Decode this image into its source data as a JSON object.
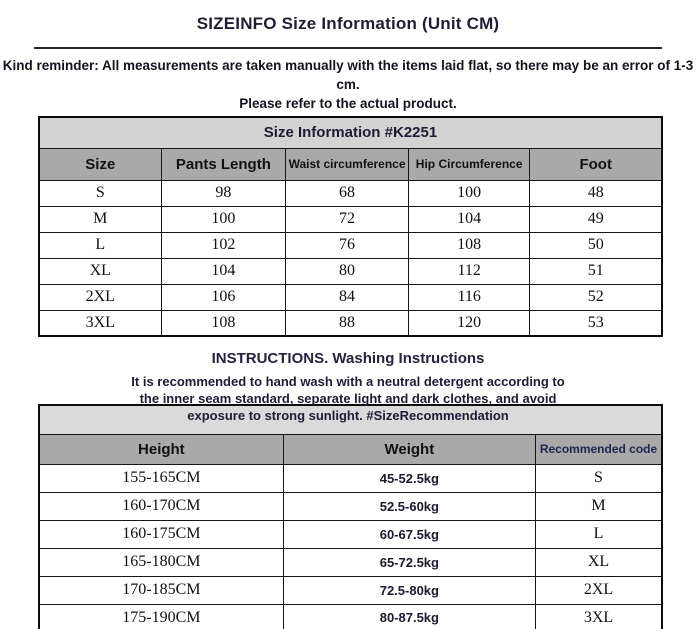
{
  "page": {
    "title": "SIZEINFO Size Information (Unit CM)",
    "reminder_line1": "Kind reminder: All measurements are taken manually with the items laid flat, so there may be an error of 1-3 cm.",
    "reminder_line2": "Please refer to the actual product."
  },
  "size_table": {
    "caption": "Size Information #K2251",
    "columns": [
      "Size",
      "Pants Length",
      "Waist circumference",
      "Hip Circumference",
      "Foot"
    ],
    "rows": [
      [
        "S",
        "98",
        "68",
        "100",
        "48"
      ],
      [
        "M",
        "100",
        "72",
        "104",
        "49"
      ],
      [
        "L",
        "102",
        "76",
        "108",
        "50"
      ],
      [
        "XL",
        "104",
        "80",
        "112",
        "51"
      ],
      [
        "2XL",
        "106",
        "84",
        "116",
        "52"
      ],
      [
        "3XL",
        "108",
        "88",
        "120",
        "53"
      ]
    ]
  },
  "washing": {
    "heading": "INSTRUCTIONS. Washing Instructions",
    "note_line1": "It is recommended to hand wash with a neutral detergent according to",
    "note_line2": "the inner seam standard, separate light and dark clothes, and avoid",
    "note_line3": "exposure to strong sunlight. #SizeRecommendation"
  },
  "recommendation_table": {
    "columns": [
      "Height",
      "Weight",
      "Recommended code"
    ],
    "rows": [
      [
        "155-165CM",
        "45-52.5kg",
        "S"
      ],
      [
        "160-170CM",
        "52.5-60kg",
        "M"
      ],
      [
        "160-175CM",
        "60-67.5kg",
        "L"
      ],
      [
        "165-180CM",
        "65-72.5kg",
        "XL"
      ],
      [
        "170-185CM",
        "72.5-80kg",
        "2XL"
      ],
      [
        "175-190CM",
        "80-87.5kg",
        "3XL"
      ]
    ]
  },
  "colors": {
    "caption_row_bg": "#d3d3d3",
    "header_row_bg": "#a9a9a9",
    "strip_row_bg": "#dadada",
    "heading_text": "#211e33",
    "accent_navy": "#1f2553",
    "border": "#0c0c0c",
    "bottom_rule": "#7d7d7d"
  }
}
